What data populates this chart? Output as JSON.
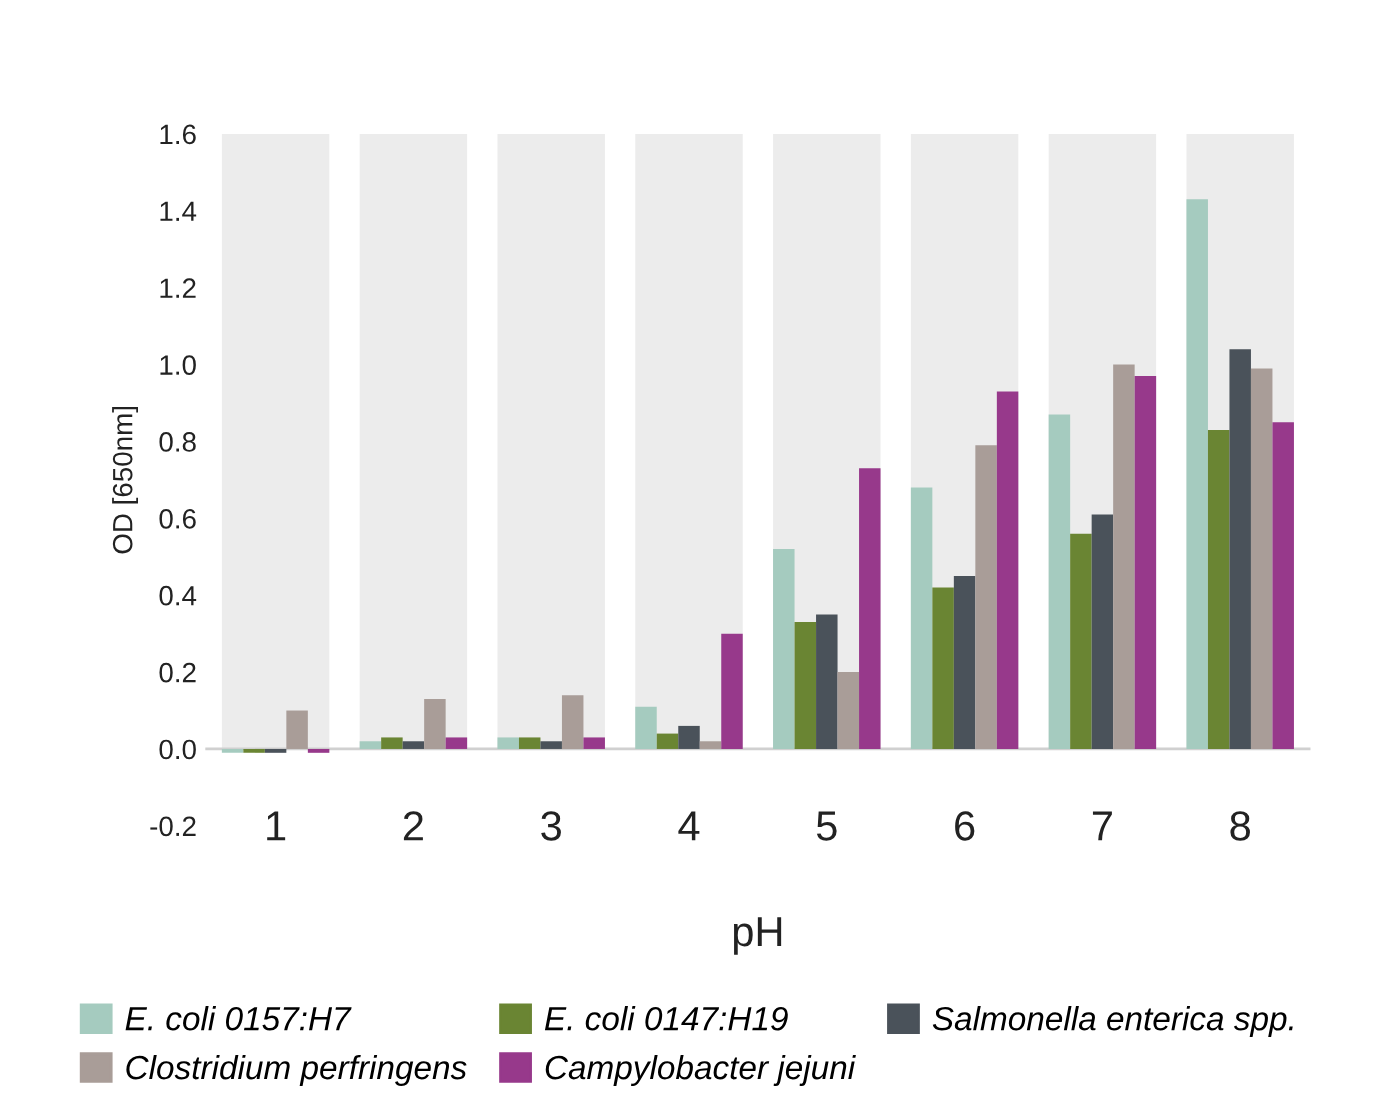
{
  "chart_data": {
    "type": "bar",
    "xlabel": "pH",
    "ylabel": "OD [650nm]",
    "categories": [
      "1",
      "2",
      "3",
      "4",
      "5",
      "6",
      "7",
      "8"
    ],
    "series": [
      {
        "name": "E. coli 0157:H7",
        "color": "#a5cbbf",
        "values": [
          -0.01,
          0.02,
          0.03,
          0.11,
          0.52,
          0.68,
          0.87,
          1.43
        ]
      },
      {
        "name": "E. coli 0147:H19",
        "color": "#6a8533",
        "values": [
          -0.01,
          0.03,
          0.03,
          0.04,
          0.33,
          0.42,
          0.56,
          0.83
        ]
      },
      {
        "name": "Salmonella enterica spp.",
        "color": "#4a525a",
        "values": [
          -0.01,
          0.02,
          0.02,
          0.06,
          0.35,
          0.45,
          0.61,
          1.04
        ]
      },
      {
        "name": "Clostridium perfringens",
        "color": "#a99d98",
        "values": [
          0.1,
          0.13,
          0.14,
          0.02,
          0.2,
          0.79,
          1.0,
          0.99
        ]
      },
      {
        "name": "Campylobacter jejuni",
        "color": "#97398b",
        "values": [
          -0.01,
          0.03,
          0.03,
          0.3,
          0.73,
          0.93,
          0.97,
          0.85
        ]
      }
    ],
    "bands": [
      {
        "axis": "x",
        "from": "1",
        "to": "1",
        "color": "#ececec"
      },
      {
        "axis": "x",
        "from": "2",
        "to": "2",
        "color": "#ececec"
      },
      {
        "axis": "x",
        "from": "3",
        "to": "3",
        "color": "#ececec"
      },
      {
        "axis": "x",
        "from": "4",
        "to": "4",
        "color": "#ececec"
      },
      {
        "axis": "x",
        "from": "5",
        "to": "5",
        "color": "#ececec"
      },
      {
        "axis": "x",
        "from": "6",
        "to": "6",
        "color": "#ececec"
      },
      {
        "axis": "x",
        "from": "7",
        "to": "7",
        "color": "#ececec"
      },
      {
        "axis": "x",
        "from": "8",
        "to": "8",
        "color": "#ececec"
      }
    ],
    "ylim": [
      -0.2,
      1.6
    ],
    "yticks": [
      {
        "value": -0.2,
        "label": "-0.2"
      },
      {
        "value": 0,
        "label": "0.0"
      },
      {
        "value": 0.2,
        "label": "0.2"
      },
      {
        "value": 0.4,
        "label": "0.4"
      },
      {
        "value": 0.6,
        "label": "0.6"
      },
      {
        "value": 0.8,
        "label": "0.8"
      },
      {
        "value": 1,
        "label": "1.0"
      },
      {
        "value": 1.2,
        "label": "1.2"
      },
      {
        "value": 1.4,
        "label": "1.4"
      },
      {
        "value": 1.6,
        "label": "1.6"
      }
    ],
    "grid": false,
    "legend": "bottom"
  }
}
